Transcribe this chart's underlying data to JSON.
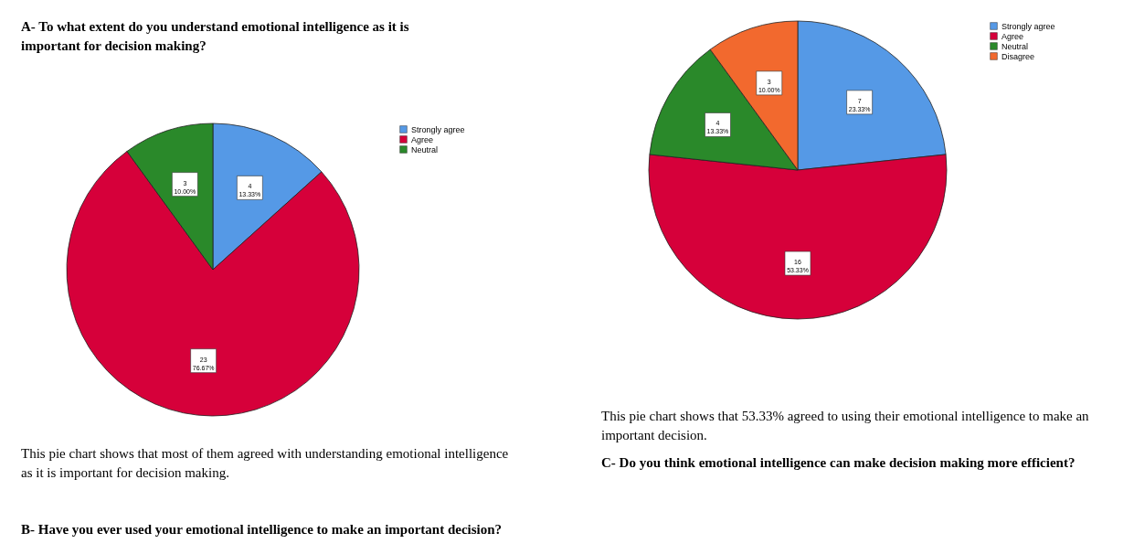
{
  "chart_data": [
    {
      "type": "pie",
      "title": "A- To what extent do you understand emotional intelligence as it is important for decision making?",
      "categories": [
        "Strongly agree",
        "Agree",
        "Neutral"
      ],
      "values": [
        4,
        23,
        3
      ],
      "colors": [
        "#5599e6",
        "#d6003a",
        "#2a892a"
      ],
      "value_labels": [
        "4\n13.33%",
        "23\n76.67%",
        "3\n10.00%"
      ],
      "legend": "top right",
      "annotations": [
        "This pie chart shows that most of them agreed with understanding emotional intelligence as it is important for decision making.",
        "B- Have you ever used your emotional intelligence to make an important decision?"
      ]
    },
    {
      "type": "pie",
      "categories": [
        "Strongly agree",
        "Agree",
        "Neutral",
        "Disagree"
      ],
      "values": [
        7,
        16,
        4,
        3
      ],
      "colors": [
        "#5599e6",
        "#d6003a",
        "#2a892a",
        "#f2692e"
      ],
      "value_labels": [
        "7\n23.33%",
        "16\n53.33%",
        "4\n13.33%",
        "3\n10.00%"
      ],
      "legend": "top right",
      "annotations": [
        "This pie chart shows that 53.33% agreed to using their emotional intelligence to make an important decision.",
        "C- Do you think emotional intelligence can make decision making more efficient?"
      ]
    }
  ]
}
